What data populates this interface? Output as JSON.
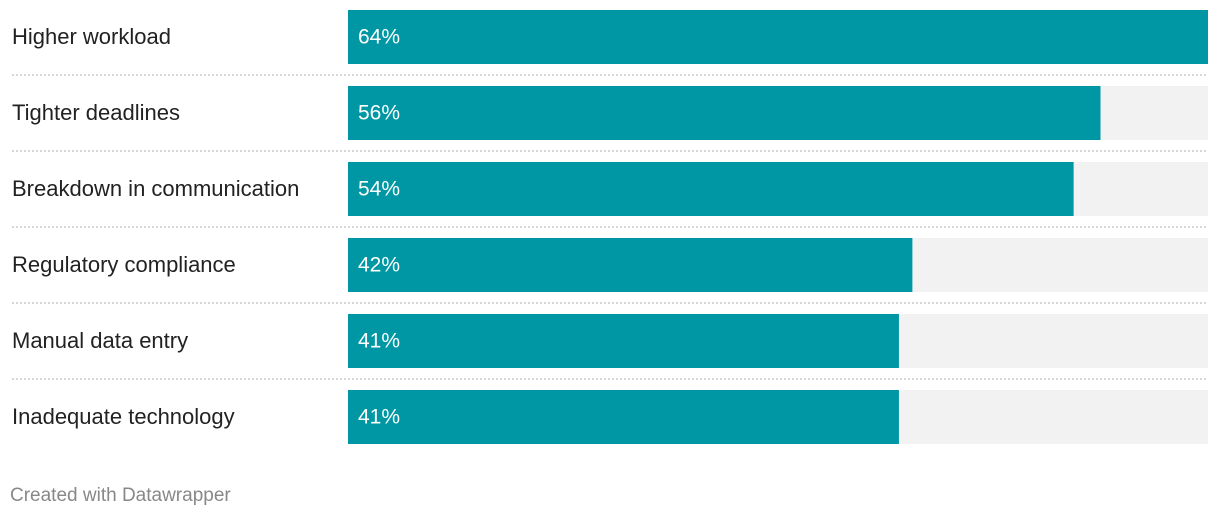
{
  "chart_data": {
    "type": "bar",
    "orientation": "horizontal",
    "categories": [
      "Higher workload",
      "Tighter deadlines",
      "Breakdown in communication",
      "Regulatory compliance",
      "Manual data entry",
      "Inadequate technology"
    ],
    "values": [
      64,
      56,
      54,
      42,
      41,
      41
    ],
    "value_labels": [
      "64%",
      "56%",
      "54%",
      "42%",
      "41%",
      "41%"
    ],
    "color": "#0097a4",
    "xlim": [
      0,
      64
    ],
    "footer": "Created with Datawrapper"
  }
}
